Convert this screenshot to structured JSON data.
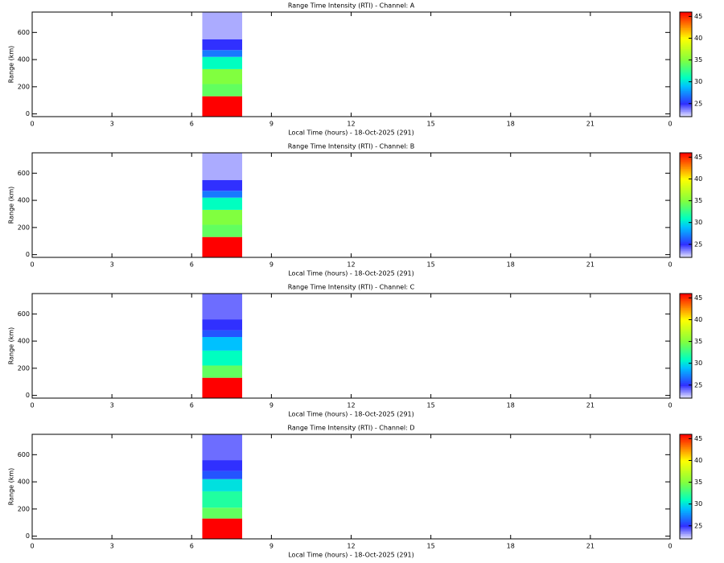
{
  "chart_data": [
    {
      "type": "heatmap",
      "title": "Range Time Intensity (RTI) - Channel: A",
      "xlabel": "Local Time (hours) - 18-Oct-2025 (291)",
      "ylabel": "Range (km)",
      "xlim": [
        0,
        24
      ],
      "xticks": [
        0,
        3,
        6,
        9,
        12,
        15,
        18,
        21,
        {
          "value": 24,
          "label": "0"
        }
      ],
      "ylim": [
        -20,
        750
      ],
      "yticks": [
        0,
        200,
        400,
        600
      ],
      "x_edges": [
        6.4,
        7.9
      ],
      "y_edges": [
        -20,
        130,
        220,
        330,
        420,
        470,
        550,
        750
      ],
      "values": [
        46,
        34,
        35,
        31,
        27,
        25,
        23
      ],
      "zlim": [
        22,
        46
      ],
      "zticks": [
        25,
        30,
        35,
        40,
        45
      ]
    },
    {
      "type": "heatmap",
      "title": "Range Time Intensity (RTI) - Channel: B",
      "xlabel": "Local Time (hours) - 18-Oct-2025 (291)",
      "ylabel": "Range (km)",
      "xlim": [
        0,
        24
      ],
      "xticks": [
        0,
        3,
        6,
        9,
        12,
        15,
        18,
        21,
        {
          "value": 24,
          "label": "0"
        }
      ],
      "ylim": [
        -20,
        750
      ],
      "yticks": [
        0,
        200,
        400,
        600
      ],
      "x_edges": [
        6.4,
        7.9
      ],
      "y_edges": [
        -20,
        130,
        220,
        330,
        420,
        470,
        550,
        750
      ],
      "values": [
        46,
        34,
        35,
        31,
        27,
        25,
        23
      ],
      "zlim": [
        22,
        46
      ],
      "zticks": [
        25,
        30,
        35,
        40,
        45
      ]
    },
    {
      "type": "heatmap",
      "title": "Range Time Intensity (RTI) - Channel: C",
      "xlabel": "Local Time (hours) - 18-Oct-2025 (291)",
      "ylabel": "Range (km)",
      "xlim": [
        0,
        24
      ],
      "xticks": [
        0,
        3,
        6,
        9,
        12,
        15,
        18,
        21,
        {
          "value": 24,
          "label": "0"
        }
      ],
      "ylim": [
        -20,
        750
      ],
      "yticks": [
        0,
        200,
        400,
        600
      ],
      "x_edges": [
        6.4,
        7.9
      ],
      "y_edges": [
        -20,
        130,
        220,
        330,
        430,
        480,
        560,
        750
      ],
      "values": [
        46,
        34,
        31,
        29,
        26,
        25,
        24
      ],
      "zlim": [
        22,
        46
      ],
      "zticks": [
        25,
        30,
        35,
        40,
        45
      ]
    },
    {
      "type": "heatmap",
      "title": "Range Time Intensity (RTI) - Channel: D",
      "xlabel": "Local Time (hours) - 18-Oct-2025 (291)",
      "ylabel": "Range (km)",
      "xlim": [
        0,
        24
      ],
      "xticks": [
        0,
        3,
        6,
        9,
        12,
        15,
        18,
        21,
        {
          "value": 24,
          "label": "0"
        }
      ],
      "ylim": [
        -20,
        750
      ],
      "yticks": [
        0,
        200,
        400,
        600
      ],
      "x_edges": [
        6.4,
        7.9
      ],
      "y_edges": [
        -20,
        130,
        210,
        330,
        420,
        480,
        560,
        750
      ],
      "values": [
        46,
        34,
        32,
        30,
        26,
        25,
        24
      ],
      "zlim": [
        22,
        46
      ],
      "zticks": [
        25,
        30,
        35,
        40,
        45
      ]
    }
  ]
}
